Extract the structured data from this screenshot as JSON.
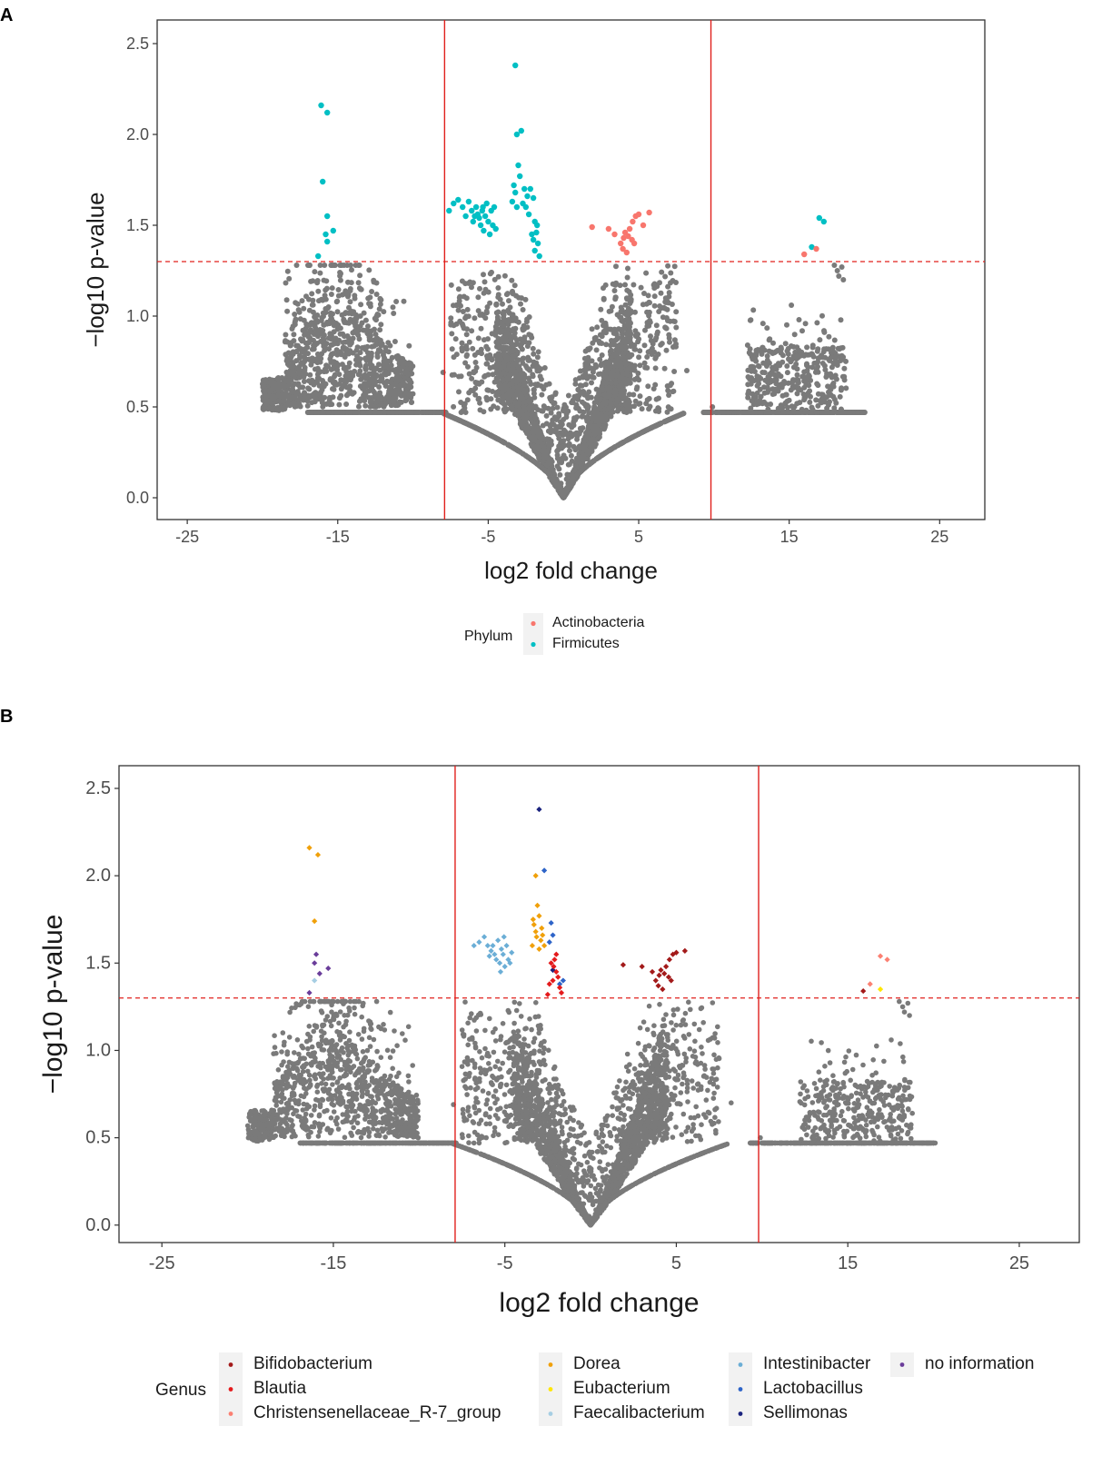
{
  "chart_data": [
    {
      "panel": "A",
      "type": "scatter",
      "title": "",
      "xlabel": "log2 fold change",
      "ylabel": "−log10 p-value",
      "xlim": [
        -27,
        28
      ],
      "ylim": [
        -0.12,
        2.63
      ],
      "xticks": [
        -25,
        -15,
        -5,
        5,
        15,
        25
      ],
      "yticks": [
        0.0,
        0.5,
        1.0,
        1.5,
        2.0,
        2.5
      ],
      "ytick_labels": [
        "0.0",
        "0.5",
        "1.0",
        "1.5",
        "2.0",
        "2.5"
      ],
      "vlines": [
        -7.9,
        9.8
      ],
      "hline": 1.3,
      "legend_title": "Phylum",
      "legend": [
        {
          "name": "Actinobacteria",
          "color": "#f8766d"
        },
        {
          "name": "Firmicutes",
          "color": "#00bfc4"
        }
      ],
      "highlight_points": [
        {
          "g": 1,
          "pts": [
            [
              -16.1,
              2.16
            ],
            [
              -15.7,
              2.12
            ],
            [
              -16.0,
              1.74
            ],
            [
              -15.7,
              1.55
            ],
            [
              -15.3,
              1.47
            ],
            [
              -15.8,
              1.45
            ],
            [
              -15.7,
              1.41
            ],
            [
              -16.3,
              1.33
            ],
            [
              -7.6,
              1.58
            ],
            [
              -7.3,
              1.62
            ],
            [
              -7.0,
              1.64
            ],
            [
              -6.7,
              1.6
            ],
            [
              -6.5,
              1.55
            ],
            [
              -6.3,
              1.63
            ],
            [
              -6.1,
              1.58
            ],
            [
              -6.0,
              1.52
            ],
            [
              -5.8,
              1.6
            ],
            [
              -5.7,
              1.56
            ],
            [
              -5.6,
              1.54
            ],
            [
              -5.5,
              1.5
            ],
            [
              -5.4,
              1.58
            ],
            [
              -5.3,
              1.47
            ],
            [
              -5.2,
              1.55
            ],
            [
              -5.1,
              1.62
            ],
            [
              -5.0,
              1.52
            ],
            [
              -4.9,
              1.45
            ],
            [
              -4.8,
              1.58
            ],
            [
              -4.7,
              1.5
            ],
            [
              -4.6,
              1.6
            ],
            [
              -4.5,
              1.48
            ],
            [
              -5.9,
              1.55
            ],
            [
              -5.35,
              1.6
            ],
            [
              -3.2,
              2.38
            ],
            [
              -3.1,
              2.0
            ],
            [
              -2.8,
              2.02
            ],
            [
              -3.3,
              1.72
            ],
            [
              -3.0,
              1.83
            ],
            [
              -2.9,
              1.77
            ],
            [
              -3.2,
              1.68
            ],
            [
              -2.6,
              1.7
            ],
            [
              -2.4,
              1.66
            ],
            [
              -2.2,
              1.7
            ],
            [
              -2.0,
              1.65
            ],
            [
              -3.4,
              1.63
            ],
            [
              -3.1,
              1.6
            ],
            [
              -2.7,
              1.62
            ],
            [
              -2.3,
              1.56
            ],
            [
              -1.9,
              1.52
            ],
            [
              -1.8,
              1.46
            ],
            [
              -2.0,
              1.42
            ],
            [
              -1.7,
              1.4
            ],
            [
              -1.9,
              1.36
            ],
            [
              -1.6,
              1.33
            ],
            [
              -2.1,
              1.45
            ],
            [
              -1.75,
              1.5
            ],
            [
              -2.5,
              1.6
            ],
            [
              16.5,
              1.38
            ],
            [
              17.0,
              1.54
            ],
            [
              17.3,
              1.52
            ]
          ]
        },
        {
          "g": 0,
          "pts": [
            [
              1.9,
              1.49
            ],
            [
              3.0,
              1.48
            ],
            [
              3.4,
              1.45
            ],
            [
              3.8,
              1.4
            ],
            [
              4.0,
              1.43
            ],
            [
              4.2,
              1.35
            ],
            [
              4.4,
              1.48
            ],
            [
              4.6,
              1.52
            ],
            [
              4.8,
              1.55
            ],
            [
              5.0,
              1.56
            ],
            [
              5.3,
              1.5
            ],
            [
              5.7,
              1.57
            ],
            [
              4.3,
              1.44
            ],
            [
              4.55,
              1.42
            ],
            [
              4.7,
              1.4
            ],
            [
              4.1,
              1.46
            ],
            [
              3.95,
              1.37
            ],
            [
              16.0,
              1.34
            ],
            [
              16.8,
              1.37
            ]
          ]
        }
      ]
    },
    {
      "panel": "B",
      "type": "scatter",
      "title": "",
      "xlabel": "log2 fold change",
      "ylabel": "−log10 p-value",
      "xlim": [
        -27.5,
        28.5
      ],
      "ylim": [
        -0.1,
        2.63
      ],
      "xticks": [
        -25,
        -15,
        -5,
        5,
        15,
        25
      ],
      "yticks": [
        0.0,
        0.5,
        1.0,
        1.5,
        2.0,
        2.5
      ],
      "ytick_labels": [
        "0.0",
        "0.5",
        "1.0",
        "1.5",
        "2.0",
        "2.5"
      ],
      "vlines": [
        -7.9,
        9.8
      ],
      "hline": 1.3,
      "legend_title": "Genus",
      "legend": [
        {
          "name": "Bifidobacterium",
          "color": "#a31a1a"
        },
        {
          "name": "Blautia",
          "color": "#e41a1c"
        },
        {
          "name": "Christensenellaceae_R-7_group",
          "color": "#fb8072"
        },
        {
          "name": "Dorea",
          "color": "#f0a00a"
        },
        {
          "name": "Eubacterium",
          "color": "#ffe600"
        },
        {
          "name": "Faecalibacterium",
          "color": "#a6cee3"
        },
        {
          "name": "Intestinibacter",
          "color": "#6baed6"
        },
        {
          "name": "Lactobacillus",
          "color": "#2e64c8"
        },
        {
          "name": "Sellimonas",
          "color": "#1a237e"
        },
        {
          "name": "no information",
          "color": "#6a3d9a"
        }
      ],
      "highlight_points": [
        {
          "g": 3,
          "pts": [
            [
              -16.4,
              2.16
            ],
            [
              -15.9,
              2.12
            ],
            [
              -16.1,
              1.74
            ],
            [
              -3.2,
              2.0
            ],
            [
              -3.3,
              1.72
            ],
            [
              -3.1,
              1.83
            ],
            [
              -3.0,
              1.77
            ],
            [
              -3.2,
              1.68
            ],
            [
              -2.9,
              1.63
            ],
            [
              -3.4,
              1.6
            ],
            [
              -2.8,
              1.66
            ],
            [
              -3.0,
              1.58
            ],
            [
              -2.7,
              1.6
            ],
            [
              -3.15,
              1.65
            ],
            [
              -2.85,
              1.7
            ],
            [
              -3.35,
              1.75
            ]
          ]
        },
        {
          "g": 9,
          "pts": [
            [
              -16.0,
              1.55
            ],
            [
              -15.3,
              1.47
            ],
            [
              -16.1,
              1.5
            ],
            [
              -15.8,
              1.44
            ],
            [
              -16.4,
              1.33
            ]
          ]
        },
        {
          "g": 5,
          "pts": [
            [
              -16.1,
              1.4
            ]
          ]
        },
        {
          "g": 6,
          "pts": [
            [
              -6.8,
              1.6
            ],
            [
              -6.5,
              1.62
            ],
            [
              -6.2,
              1.65
            ],
            [
              -6.0,
              1.6
            ],
            [
              -5.8,
              1.57
            ],
            [
              -5.6,
              1.55
            ],
            [
              -5.5,
              1.52
            ],
            [
              -5.4,
              1.63
            ],
            [
              -5.3,
              1.5
            ],
            [
              -5.2,
              1.58
            ],
            [
              -5.1,
              1.55
            ],
            [
              -5.0,
              1.48
            ],
            [
              -4.9,
              1.6
            ],
            [
              -4.8,
              1.52
            ],
            [
              -4.7,
              1.5
            ],
            [
              -5.7,
              1.6
            ],
            [
              -5.9,
              1.54
            ],
            [
              -4.6,
              1.56
            ],
            [
              -5.25,
              1.45
            ],
            [
              -5.05,
              1.65
            ]
          ]
        },
        {
          "g": 7,
          "pts": [
            [
              -2.7,
              2.03
            ],
            [
              -2.3,
              1.73
            ],
            [
              -2.2,
              1.66
            ],
            [
              -2.4,
              1.62
            ],
            [
              -1.8,
              1.38
            ],
            [
              -1.6,
              1.4
            ]
          ]
        },
        {
          "g": 8,
          "pts": [
            [
              -3.0,
              2.38
            ],
            [
              -2.2,
              1.46
            ]
          ]
        },
        {
          "g": 1,
          "pts": [
            [
              -2.1,
              1.52
            ],
            [
              -2.3,
              1.5
            ],
            [
              -2.0,
              1.45
            ],
            [
              -1.9,
              1.42
            ],
            [
              -2.2,
              1.4
            ],
            [
              -1.8,
              1.36
            ],
            [
              -2.4,
              1.38
            ],
            [
              -2.0,
              1.55
            ],
            [
              -2.5,
              1.32
            ],
            [
              -1.7,
              1.33
            ],
            [
              -2.15,
              1.48
            ]
          ]
        },
        {
          "g": 0,
          "pts": [
            [
              1.9,
              1.49
            ],
            [
              3.0,
              1.48
            ],
            [
              3.6,
              1.45
            ],
            [
              3.8,
              1.4
            ],
            [
              4.0,
              1.43
            ],
            [
              4.2,
              1.35
            ],
            [
              4.4,
              1.48
            ],
            [
              4.6,
              1.52
            ],
            [
              4.8,
              1.55
            ],
            [
              5.0,
              1.56
            ],
            [
              5.5,
              1.57
            ],
            [
              4.3,
              1.44
            ],
            [
              4.55,
              1.42
            ],
            [
              4.7,
              1.4
            ],
            [
              4.1,
              1.46
            ],
            [
              3.95,
              1.37
            ],
            [
              15.9,
              1.34
            ]
          ]
        },
        {
          "g": 2,
          "pts": [
            [
              16.3,
              1.38
            ],
            [
              16.9,
              1.54
            ],
            [
              17.3,
              1.52
            ]
          ]
        },
        {
          "g": 4,
          "pts": [
            [
              16.9,
              1.35
            ]
          ]
        }
      ]
    }
  ],
  "panels": {
    "A": {
      "letter": "A"
    },
    "B": {
      "letter": "B"
    }
  }
}
